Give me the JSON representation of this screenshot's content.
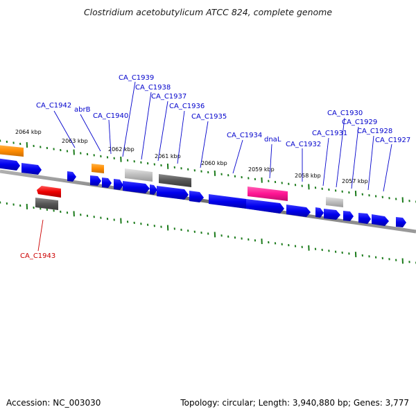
{
  "title": "Clostridium acetobutylicum ATCC 824, complete genome",
  "footer": {
    "accession": "Accession: NC_003030",
    "summary": "Topology: circular; Length: 3,940,880 bp; Genes: 3,777"
  },
  "colors": {
    "backbone": "#808080",
    "cds": "#0000ee",
    "highlight": "#ff1493",
    "rna": "#ff8c00",
    "pseudo_dark": "#555555",
    "pseudo_light": "#bdbdbd",
    "red_feature": "#ee0000",
    "ticks": "#1a7a1a",
    "label_blue": "#0000cc",
    "label_red": "#cc0000"
  },
  "scale_labels": [
    "2064 kbp",
    "2063 kbp",
    "2062 kbp",
    "2061 kbp",
    "2060 kbp",
    "2059 kbp",
    "2058 kbp",
    "2057 kbp"
  ],
  "gene_labels": [
    {
      "text": "CA_C1942",
      "color": "blue"
    },
    {
      "text": "abrB",
      "color": "blue"
    },
    {
      "text": "CA_C1940",
      "color": "blue"
    },
    {
      "text": "CA_C1939",
      "color": "blue"
    },
    {
      "text": "CA_C1938",
      "color": "blue"
    },
    {
      "text": "CA_C1937",
      "color": "blue"
    },
    {
      "text": "CA_C1936",
      "color": "blue"
    },
    {
      "text": "CA_C1935",
      "color": "blue"
    },
    {
      "text": "CA_C1934",
      "color": "blue"
    },
    {
      "text": "dnaL",
      "color": "blue"
    },
    {
      "text": "CA_C1932",
      "color": "blue"
    },
    {
      "text": "CA_C1931",
      "color": "blue"
    },
    {
      "text": "CA_C1930",
      "color": "blue"
    },
    {
      "text": "CA_C1929",
      "color": "blue"
    },
    {
      "text": "CA_C1928",
      "color": "blue"
    },
    {
      "text": "CA_C1927",
      "color": "blue"
    },
    {
      "text": "CA_C1943",
      "color": "red"
    }
  ]
}
